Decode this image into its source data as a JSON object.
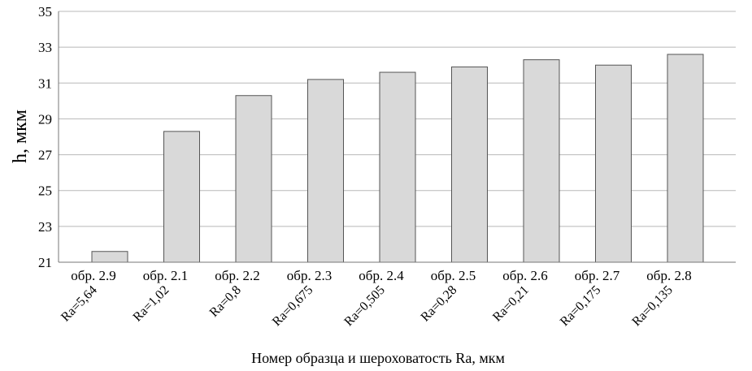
{
  "chart_data": {
    "type": "bar",
    "categories": [
      "обр. 2.9",
      "обр. 2.1",
      "обр. 2.2",
      "обр. 2.3",
      "обр. 2.4",
      "обр. 2.5",
      "обр. 2.6",
      "обр. 2.7",
      "обр. 2.8"
    ],
    "roughness": [
      "Ra=5,64",
      "Ra=1,02",
      "Ra=0,8",
      "Ra=0,675",
      "Ra=0,505",
      "Ra=0,28",
      "Ra=0,21",
      "Ra=0,175",
      "Ra=0,135"
    ],
    "values": [
      21.6,
      28.3,
      30.3,
      31.2,
      31.6,
      31.9,
      32.3,
      32.0,
      32.6
    ],
    "title": "",
    "xlabel": "Номер образца и шероховатость Ra, мкм",
    "ylabel": "h, мкм",
    "ylim": [
      21,
      35
    ],
    "yticks": [
      "21",
      "23",
      "25",
      "27",
      "29",
      "31",
      "33",
      "35"
    ],
    "grid": true,
    "legend": "none",
    "colors": {
      "bar_fill": "#d9d9d9",
      "bar_stroke": "#555555",
      "grid": "#b8b8b8"
    }
  }
}
